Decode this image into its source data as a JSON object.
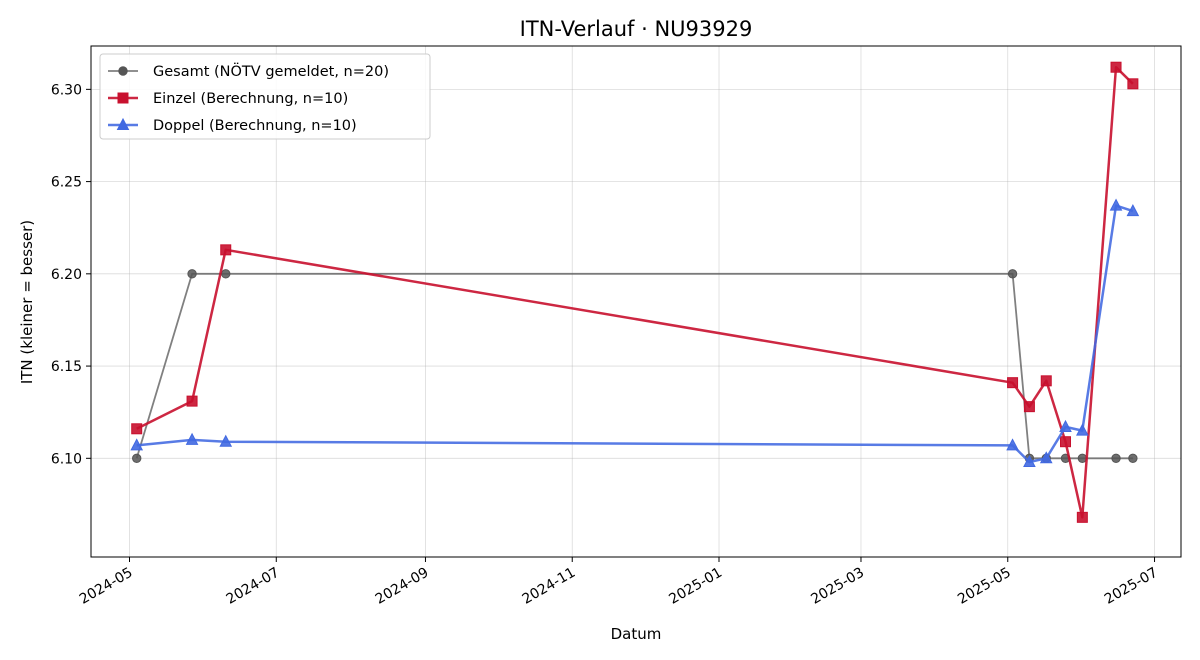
{
  "chart_data": {
    "type": "line",
    "title": "ITN-Verlauf · NU93929",
    "xlabel": "Datum",
    "ylabel": "ITN  (kleiner = besser)",
    "grid": true,
    "legend_position": "top-left",
    "xlim": [
      "2024-04-15",
      "2025-07-12"
    ],
    "ylim": [
      6.0465,
      6.3235
    ],
    "x_ticks": [
      "2024-05",
      "2024-07",
      "2024-09",
      "2024-11",
      "2025-01",
      "2025-03",
      "2025-05",
      "2025-07"
    ],
    "y_ticks": [
      "6.10",
      "6.15",
      "6.20",
      "6.25",
      "6.30"
    ],
    "series": [
      {
        "name": "Gesamt (NÖTV gemeldet, n=20)",
        "color": "#555555",
        "marker": "circle",
        "points": [
          {
            "x": "2024-05-04",
            "y": 6.1
          },
          {
            "x": "2024-05-27",
            "y": 6.2
          },
          {
            "x": "2024-06-10",
            "y": 6.2
          },
          {
            "x": "2025-05-03",
            "y": 6.2
          },
          {
            "x": "2025-05-10",
            "y": 6.1
          },
          {
            "x": "2025-05-17",
            "y": 6.1
          },
          {
            "x": "2025-05-25",
            "y": 6.1
          },
          {
            "x": "2025-06-01",
            "y": 6.1
          },
          {
            "x": "2025-06-15",
            "y": 6.1
          },
          {
            "x": "2025-06-22",
            "y": 6.1
          }
        ]
      },
      {
        "name": "Einzel (Berechnung, n=10)",
        "color": "#c8102e",
        "marker": "square",
        "points": [
          {
            "x": "2024-05-04",
            "y": 6.116
          },
          {
            "x": "2024-05-27",
            "y": 6.131
          },
          {
            "x": "2024-06-10",
            "y": 6.213
          },
          {
            "x": "2025-05-03",
            "y": 6.141
          },
          {
            "x": "2025-05-10",
            "y": 6.128
          },
          {
            "x": "2025-05-17",
            "y": 6.142
          },
          {
            "x": "2025-05-25",
            "y": 6.109
          },
          {
            "x": "2025-06-01",
            "y": 6.068
          },
          {
            "x": "2025-06-15",
            "y": 6.312
          },
          {
            "x": "2025-06-22",
            "y": 6.303
          }
        ]
      },
      {
        "name": "Doppel (Berechnung, n=10)",
        "color": "#4169e1",
        "marker": "triangle",
        "points": [
          {
            "x": "2024-05-04",
            "y": 6.107
          },
          {
            "x": "2024-05-27",
            "y": 6.11
          },
          {
            "x": "2024-06-10",
            "y": 6.109
          },
          {
            "x": "2025-05-03",
            "y": 6.107
          },
          {
            "x": "2025-05-10",
            "y": 6.098
          },
          {
            "x": "2025-05-17",
            "y": 6.1
          },
          {
            "x": "2025-05-25",
            "y": 6.117
          },
          {
            "x": "2025-06-01",
            "y": 6.115
          },
          {
            "x": "2025-06-15",
            "y": 6.237
          },
          {
            "x": "2025-06-22",
            "y": 6.234
          }
        ]
      }
    ]
  }
}
